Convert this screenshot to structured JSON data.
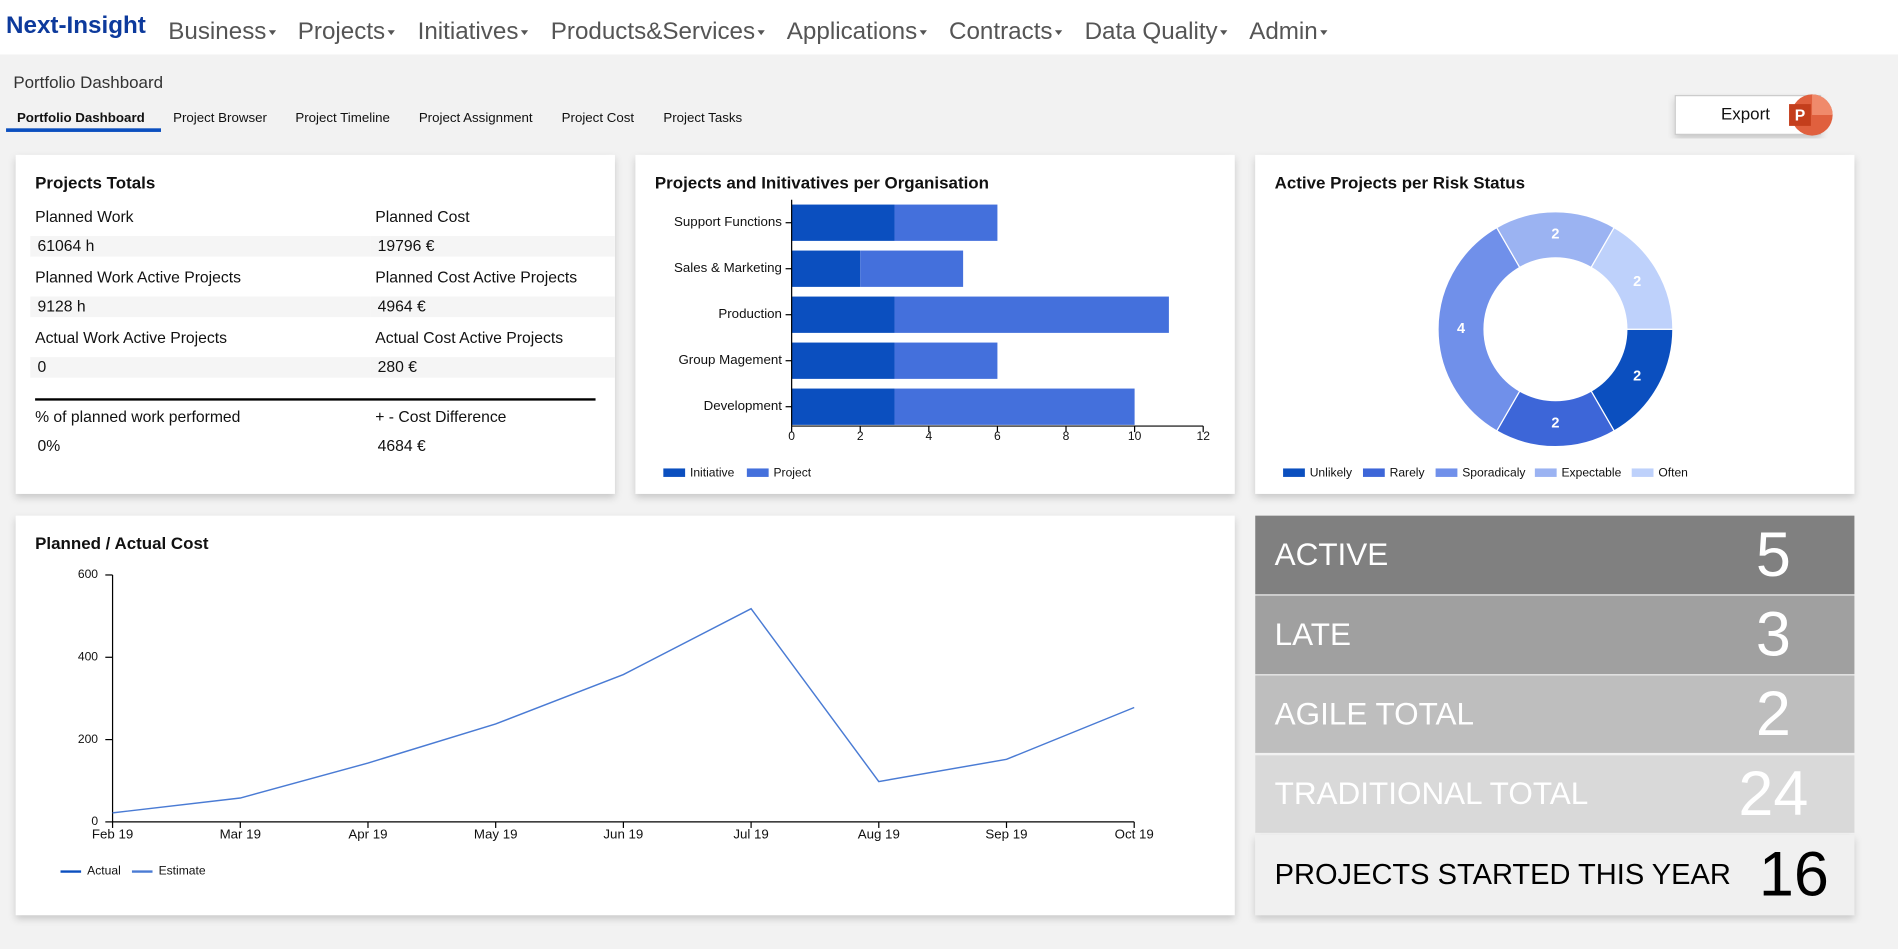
{
  "nav": {
    "brand": "Next-Insight",
    "menu": [
      "Business",
      "Projects",
      "Initiatives",
      "Products&Services",
      "Applications",
      "Contracts",
      "Data Quality",
      "Admin"
    ]
  },
  "page_title": "Portfolio Dashboard",
  "tabs": [
    "Portfolio Dashboard",
    "Project Browser",
    "Project Timeline",
    "Project Assignment",
    "Project Cost",
    "Project Tasks"
  ],
  "export_button": "Export",
  "totals": {
    "title": "Projects Totals",
    "items": [
      {
        "label": "Planned Work",
        "value": "61064 h"
      },
      {
        "label": "Planned Cost",
        "value": "19796 €"
      },
      {
        "label": "Planned Work Active Projects",
        "value": "9128 h"
      },
      {
        "label": "Planned Cost Active Projects",
        "value": "4964 €"
      },
      {
        "label": "Actual Work Active Projects",
        "value": "0"
      },
      {
        "label": "Actual Cost Active Projects",
        "value": "280 €"
      },
      {
        "label": "% of planned work performed",
        "value": "0%"
      },
      {
        "label": "+ - Cost Difference",
        "value": "4684 €"
      }
    ]
  },
  "chart_data": [
    {
      "type": "bar",
      "orientation": "horizontal",
      "stacked": true,
      "title": "Projects and Initivatives per Organisation",
      "categories": [
        "Support Functions",
        "Sales & Marketing",
        "Production",
        "Group Magement",
        "Development"
      ],
      "series": [
        {
          "name": "Initiative",
          "color": "#0b4fbf",
          "values": [
            3,
            2,
            3,
            3,
            3
          ]
        },
        {
          "name": "Project",
          "color": "#4470dc",
          "values": [
            3,
            3,
            8,
            3,
            7
          ]
        }
      ],
      "xlim": [
        0,
        12
      ],
      "xticks": [
        0,
        2,
        4,
        6,
        8,
        10,
        12
      ]
    },
    {
      "type": "pie",
      "donut": true,
      "title": "Active Projects per Risk Status",
      "categories": [
        "Unlikely",
        "Rarely",
        "Sporadicaly",
        "Expectable",
        "Often"
      ],
      "values": [
        2,
        2,
        4,
        2,
        2
      ],
      "colors": [
        "#0b4fbf",
        "#3d66d8",
        "#7090ea",
        "#9bb3f2",
        "#bed1fb"
      ]
    },
    {
      "type": "line",
      "title": "Planned / Actual Cost",
      "x": [
        "Feb 19",
        "Mar 19",
        "Apr 19",
        "May 19",
        "Jun 19",
        "Jul 19",
        "Aug 19",
        "Sep 19",
        "Oct 19"
      ],
      "series": [
        {
          "name": "Actual",
          "color": "#0b4fbf",
          "values": [
            null,
            null,
            null,
            null,
            null,
            null,
            null,
            null,
            null
          ]
        },
        {
          "name": "Estimate",
          "color": "#4a7bd4",
          "values": [
            22,
            58,
            143,
            238,
            358,
            518,
            98,
            152,
            278
          ]
        }
      ],
      "ylim": [
        0,
        600
      ],
      "yticks": [
        0,
        200,
        400,
        600
      ]
    }
  ],
  "kpis": [
    {
      "label": "ACTIVE",
      "value": 5
    },
    {
      "label": "LATE",
      "value": 3
    },
    {
      "label": "AGILE TOTAL",
      "value": 2
    },
    {
      "label": "TRADITIONAL TOTAL",
      "value": 24
    },
    {
      "label": "PROJECTS STARTED THIS YEAR",
      "value": 16
    }
  ]
}
